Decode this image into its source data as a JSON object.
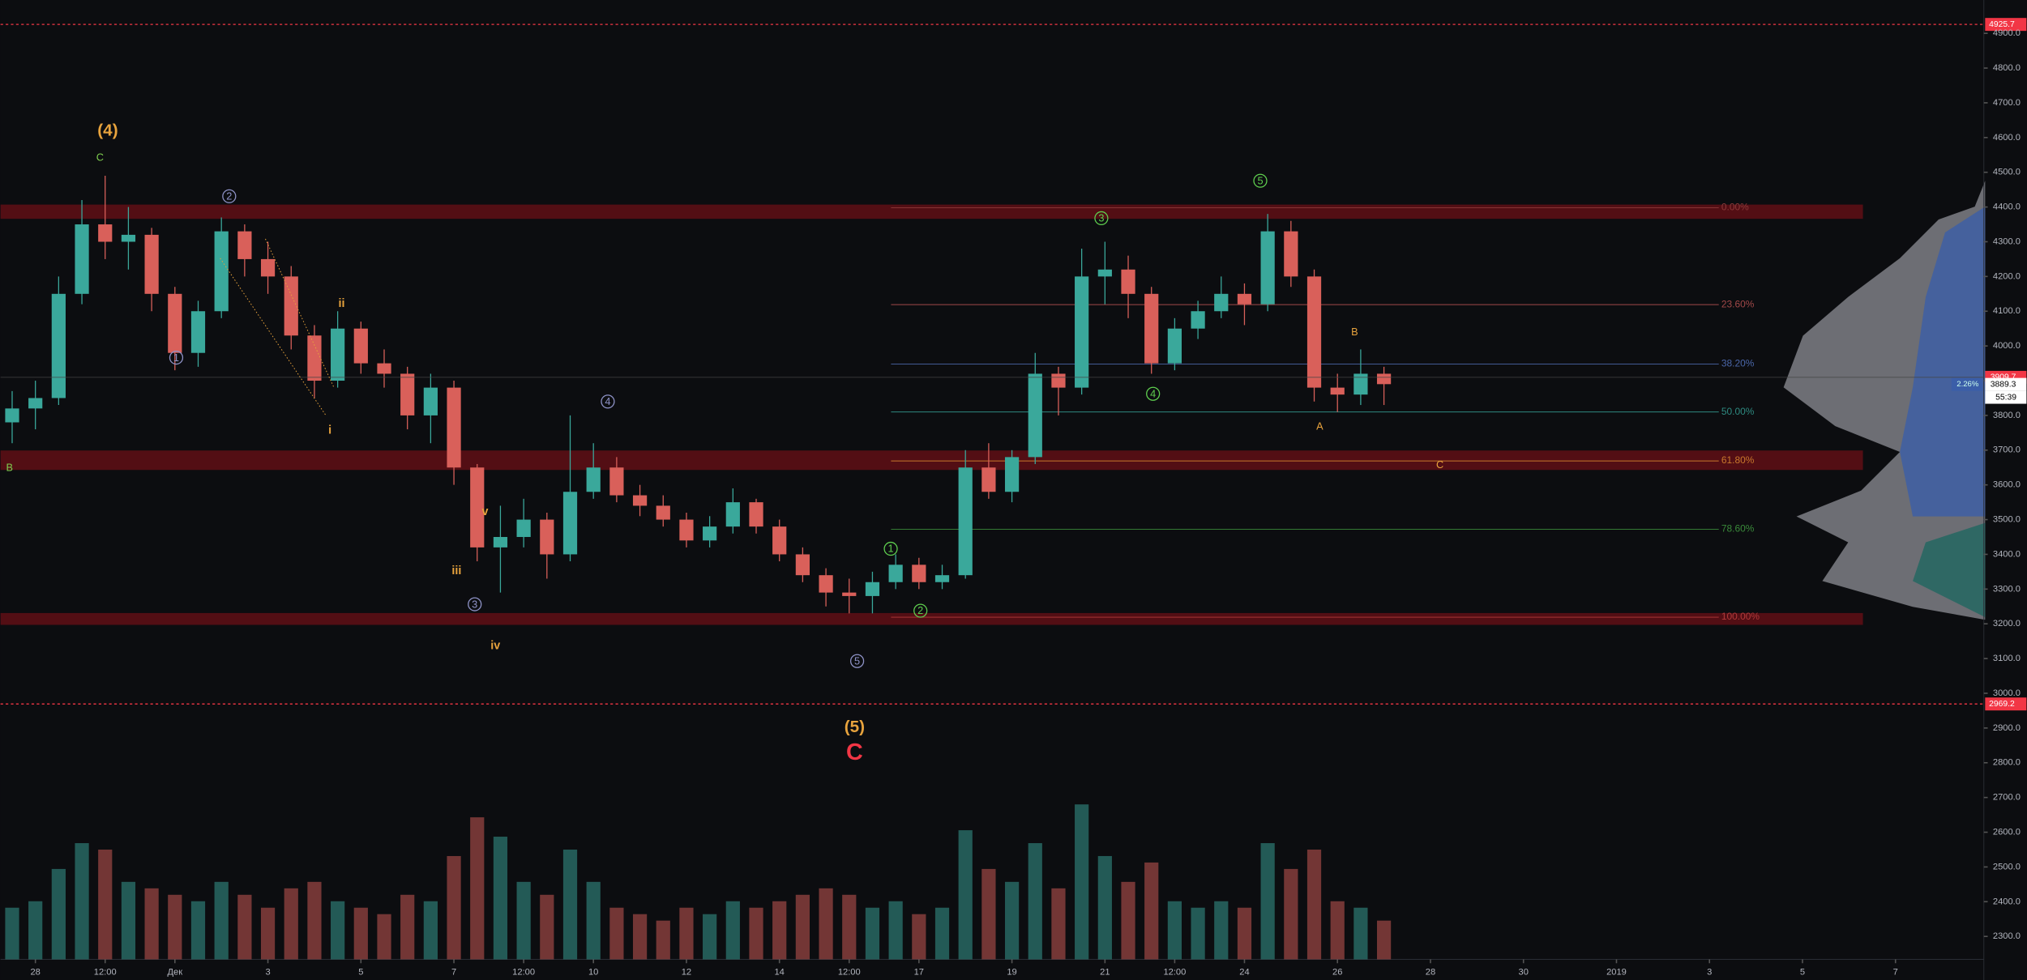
{
  "chart_data": {
    "type": "candlestick",
    "up_color": "#3aa89b",
    "down_color": "#d9605a",
    "xlim": [
      -0.75,
      41.9
    ],
    "ylim": [
      2234,
      4996
    ],
    "xticks": [
      {
        "value": 0,
        "label": "28"
      },
      {
        "value": 1.5,
        "label": "12:00"
      },
      {
        "value": 3,
        "label": "Дек"
      },
      {
        "value": 5,
        "label": "3"
      },
      {
        "value": 7,
        "label": "5"
      },
      {
        "value": 9,
        "label": "7"
      },
      {
        "value": 10.5,
        "label": "12:00"
      },
      {
        "value": 12,
        "label": "10"
      },
      {
        "value": 14,
        "label": "12"
      },
      {
        "value": 16,
        "label": "14"
      },
      {
        "value": 17.5,
        "label": "12:00"
      },
      {
        "value": 19,
        "label": "17"
      },
      {
        "value": 21,
        "label": "19"
      },
      {
        "value": 23,
        "label": "21"
      },
      {
        "value": 24.5,
        "label": "12:00"
      },
      {
        "value": 26,
        "label": "24"
      },
      {
        "value": 28,
        "label": "26"
      },
      {
        "value": 30,
        "label": "28"
      },
      {
        "value": 32,
        "label": "30"
      },
      {
        "value": 34,
        "label": "2019"
      },
      {
        "value": 36,
        "label": "3"
      },
      {
        "value": 38,
        "label": "5"
      },
      {
        "value": 40,
        "label": "7"
      }
    ],
    "yticks": [
      {
        "value": 2300,
        "label": "2300.0"
      },
      {
        "value": 2400,
        "label": "2400.0"
      },
      {
        "value": 2500,
        "label": "2500.0"
      },
      {
        "value": 2600,
        "label": "2600.0"
      },
      {
        "value": 2700,
        "label": "2700.0"
      },
      {
        "value": 2800,
        "label": "2800.0"
      },
      {
        "value": 2900,
        "label": "2900.0"
      },
      {
        "value": 3000,
        "label": "3000.0"
      },
      {
        "value": 3100,
        "label": "3100.0"
      },
      {
        "value": 3200,
        "label": "3200.0"
      },
      {
        "value": 3300,
        "label": "3300.0"
      },
      {
        "value": 3400,
        "label": "3400.0"
      },
      {
        "value": 3500,
        "label": "3500.0"
      },
      {
        "value": 3600,
        "label": "3600.0"
      },
      {
        "value": 3700,
        "label": "3700.0"
      },
      {
        "value": 3800,
        "label": "3800.0"
      },
      {
        "value": 3900,
        "label": "3900.0"
      },
      {
        "value": 4000,
        "label": "4000.0"
      },
      {
        "value": 4100,
        "label": "4100.0"
      },
      {
        "value": 4200,
        "label": "4200.0"
      },
      {
        "value": 4300,
        "label": "4300.0"
      },
      {
        "value": 4400,
        "label": "4400.0"
      },
      {
        "value": 4500,
        "label": "4500.0"
      },
      {
        "value": 4600,
        "label": "4600.0"
      },
      {
        "value": 4700,
        "label": "4700.0"
      },
      {
        "value": 4800,
        "label": "4800.0"
      },
      {
        "value": 4900,
        "label": "4900.0"
      }
    ],
    "x": [
      -0.5,
      0,
      0.5,
      1,
      1.5,
      2,
      2.5,
      3,
      3.5,
      4,
      4.5,
      5,
      5.5,
      6,
      6.5,
      7,
      7.5,
      8,
      8.5,
      9,
      9.5,
      10,
      10.5,
      11,
      11.5,
      12,
      12.5,
      13,
      13.5,
      14,
      14.5,
      15,
      15.5,
      16,
      16.5,
      17,
      17.5,
      18,
      18.5,
      19,
      19.5,
      20,
      20.5,
      21,
      21.5,
      22,
      22.5,
      23,
      23.5,
      24,
      24.5,
      25,
      25.5,
      26,
      26.5,
      27,
      27.5,
      28,
      28.5,
      29
    ],
    "ohlc": [
      [
        3780,
        3870,
        3720,
        3820
      ],
      [
        3820,
        3900,
        3760,
        3850
      ],
      [
        3850,
        4200,
        3830,
        4150
      ],
      [
        4150,
        4420,
        4120,
        4350
      ],
      [
        4350,
        4490,
        4250,
        4300
      ],
      [
        4300,
        4400,
        4220,
        4320
      ],
      [
        4320,
        4340,
        4100,
        4150
      ],
      [
        4150,
        4170,
        3930,
        3980
      ],
      [
        3980,
        4130,
        3940,
        4100
      ],
      [
        4100,
        4370,
        4080,
        4330
      ],
      [
        4330,
        4350,
        4200,
        4250
      ],
      [
        4250,
        4300,
        4150,
        4200
      ],
      [
        4200,
        4230,
        3990,
        4030
      ],
      [
        4030,
        4060,
        3850,
        3900
      ],
      [
        3900,
        4100,
        3880,
        4050
      ],
      [
        4050,
        4070,
        3920,
        3950
      ],
      [
        3950,
        3990,
        3880,
        3920
      ],
      [
        3920,
        3940,
        3760,
        3800
      ],
      [
        3800,
        3920,
        3720,
        3880
      ],
      [
        3880,
        3900,
        3600,
        3650
      ],
      [
        3650,
        3660,
        3380,
        3420
      ],
      [
        3420,
        3540,
        3290,
        3450
      ],
      [
        3450,
        3560,
        3420,
        3500
      ],
      [
        3500,
        3520,
        3330,
        3400
      ],
      [
        3400,
        3800,
        3380,
        3580
      ],
      [
        3580,
        3720,
        3560,
        3650
      ],
      [
        3650,
        3680,
        3550,
        3570
      ],
      [
        3570,
        3600,
        3510,
        3540
      ],
      [
        3540,
        3570,
        3480,
        3500
      ],
      [
        3500,
        3520,
        3420,
        3440
      ],
      [
        3440,
        3510,
        3420,
        3480
      ],
      [
        3480,
        3590,
        3460,
        3550
      ],
      [
        3550,
        3560,
        3460,
        3480
      ],
      [
        3480,
        3500,
        3380,
        3400
      ],
      [
        3400,
        3420,
        3320,
        3340
      ],
      [
        3340,
        3360,
        3250,
        3290
      ],
      [
        3290,
        3330,
        3230,
        3280
      ],
      [
        3280,
        3350,
        3230,
        3320
      ],
      [
        3320,
        3400,
        3300,
        3370
      ],
      [
        3370,
        3390,
        3300,
        3320
      ],
      [
        3320,
        3370,
        3300,
        3340
      ],
      [
        3340,
        3700,
        3330,
        3650
      ],
      [
        3650,
        3720,
        3560,
        3580
      ],
      [
        3580,
        3700,
        3550,
        3680
      ],
      [
        3680,
        3980,
        3660,
        3920
      ],
      [
        3920,
        3940,
        3800,
        3880
      ],
      [
        3880,
        4280,
        3860,
        4200
      ],
      [
        4200,
        4300,
        4120,
        4220
      ],
      [
        4220,
        4260,
        4080,
        4150
      ],
      [
        4150,
        4170,
        3920,
        3950
      ],
      [
        3950,
        4080,
        3930,
        4050
      ],
      [
        4050,
        4130,
        4020,
        4100
      ],
      [
        4100,
        4200,
        4080,
        4150
      ],
      [
        4150,
        4180,
        4060,
        4120
      ],
      [
        4120,
        4380,
        4100,
        4330
      ],
      [
        4330,
        4360,
        4170,
        4200
      ],
      [
        4200,
        4220,
        3840,
        3880
      ],
      [
        3880,
        3920,
        3810,
        3860
      ],
      [
        3860,
        3990,
        3830,
        3920
      ],
      [
        3920,
        3940,
        3830,
        3890
      ]
    ],
    "volume": [
      40,
      45,
      70,
      90,
      85,
      60,
      55,
      50,
      45,
      60,
      50,
      40,
      55,
      60,
      45,
      40,
      35,
      50,
      45,
      80,
      110,
      95,
      60,
      50,
      85,
      60,
      40,
      35,
      30,
      40,
      35,
      45,
      40,
      45,
      50,
      55,
      50,
      40,
      45,
      35,
      40,
      100,
      70,
      60,
      90,
      55,
      120,
      80,
      60,
      75,
      45,
      40,
      45,
      40,
      90,
      70,
      85,
      45,
      40,
      30
    ],
    "zones": [
      [
        4366,
        4407
      ],
      [
        3643,
        3699
      ],
      [
        3197,
        3231
      ]
    ],
    "zone_end": 39.3,
    "price_lines": [
      {
        "value": 4925.7,
        "color": "#f23645"
      },
      {
        "value": 2969.2,
        "color": "#f23645"
      }
    ],
    "price_markers": [
      {
        "value": 3909.7,
        "color": "#f23645"
      },
      {
        "value": 3889.3,
        "color": "#ffffff"
      }
    ],
    "countdown": "55:39",
    "change_label": "2.26%",
    "fib": {
      "start": 18.4,
      "end": 36.2,
      "levels": [
        {
          "value": 4398,
          "label": "0.00%",
          "color": "#8c3a3a"
        },
        {
          "value": 4119,
          "label": "23.60%",
          "color": "#a04848"
        },
        {
          "value": 3948,
          "label": "38.20%",
          "color": "#4a66a8"
        },
        {
          "value": 3810,
          "label": "50.00%",
          "color": "#2e8a80"
        },
        {
          "value": 3669,
          "label": "61.80%",
          "color": "#c8782c"
        },
        {
          "value": 3472,
          "label": "78.60%",
          "color": "#3a8a3a"
        },
        {
          "value": 3219,
          "label": "100.00%",
          "color": "#b03a3a"
        }
      ]
    },
    "annotations": [
      {
        "text": "(4)",
        "color": "#e8a33d"
      },
      {
        "text": "C",
        "color": "#7fcf4f"
      },
      {
        "text": "B",
        "color": "#7fcf4f"
      },
      {
        "text": "2",
        "color": "#8f93c8"
      },
      {
        "text": "1",
        "color": "#8f93c8"
      },
      {
        "text": "ii",
        "color": "#e8a33d"
      },
      {
        "text": "i",
        "color": "#e8a33d"
      },
      {
        "text": "v",
        "color": "#e8a33d"
      },
      {
        "text": "iii",
        "color": "#e8a33d"
      },
      {
        "text": "iv",
        "color": "#e8a33d"
      },
      {
        "text": "3",
        "color": "#8f93c8"
      },
      {
        "text": "4",
        "color": "#8f93c8"
      },
      {
        "text": "5",
        "color": "#8f93c8"
      },
      {
        "text": "(5)",
        "color": "#e8a33d"
      },
      {
        "text": "C",
        "color": "#f23645"
      },
      {
        "text": "1",
        "color": "#5fcf4f"
      },
      {
        "text": "2",
        "color": "#5fcf4f"
      },
      {
        "text": "3",
        "color": "#5fcf4f"
      },
      {
        "text": "4",
        "color": "#5fcf4f"
      },
      {
        "text": "5",
        "color": "#5fcf4f"
      },
      {
        "text": "A",
        "color": "#e8a33d"
      },
      {
        "text": "B",
        "color": "#e8a33d"
      },
      {
        "text": "C",
        "color": "#e8a33d"
      }
    ]
  }
}
